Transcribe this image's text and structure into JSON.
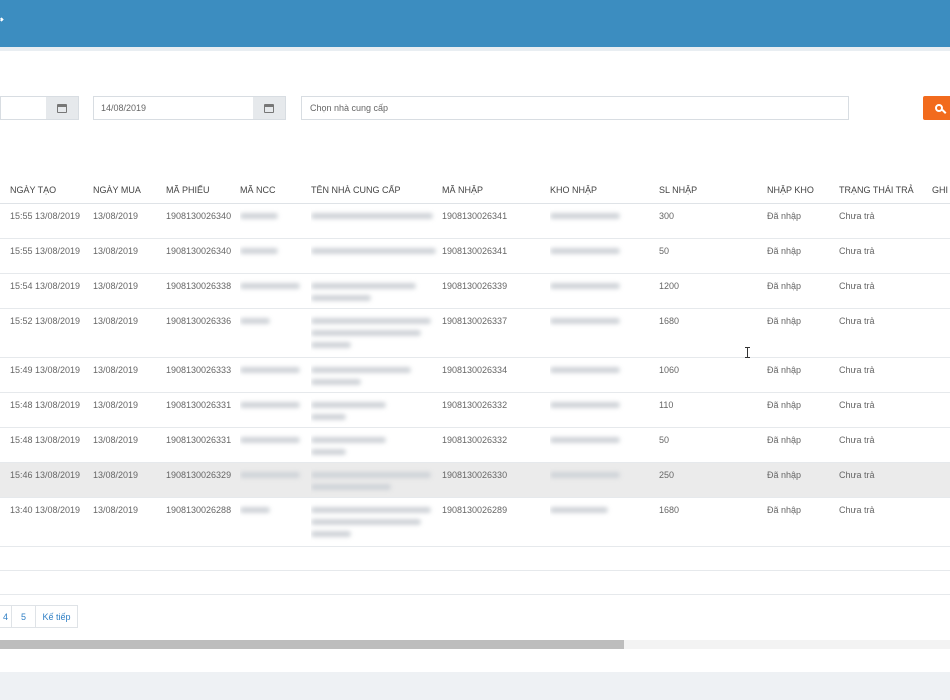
{
  "filters": {
    "date_from": "",
    "date_to": "14/08/2019",
    "supplier_placeholder": "Chọn nhà cung cấp"
  },
  "table": {
    "headers": {
      "created": "NGÀY TẠO",
      "buy_date": "NGÀY MUA",
      "slip": "MÃ PHIẾU",
      "supplier_code": "MÃ NCC",
      "supplier_name": "TÊN NHÀ CUNG CẤP",
      "import_code": "MÃ NHẬP",
      "warehouse": "KHO NHẬP",
      "qty": "SL NHẬP",
      "import_status": "NHẬP KHO",
      "pay_status": "TRẠNG THÁI TRẢ",
      "note": "GHI"
    },
    "rows": [
      {
        "created": "15:55 13/08/2019",
        "buy_date": "13/08/2019",
        "slip": "1908130026340",
        "import_code": "1908130026341",
        "qty": "300",
        "import_status": "Đã nhập",
        "pay_status": "Chưa trả"
      },
      {
        "created": "15:55 13/08/2019",
        "buy_date": "13/08/2019",
        "slip": "1908130026340",
        "import_code": "1908130026341",
        "qty": "50",
        "import_status": "Đã nhập",
        "pay_status": "Chưa trả"
      },
      {
        "created": "15:54 13/08/2019",
        "buy_date": "13/08/2019",
        "slip": "1908130026338",
        "import_code": "1908130026339",
        "qty": "1200",
        "import_status": "Đã nhập",
        "pay_status": "Chưa trả"
      },
      {
        "created": "15:52 13/08/2019",
        "buy_date": "13/08/2019",
        "slip": "1908130026336",
        "import_code": "1908130026337",
        "qty": "1680",
        "import_status": "Đã nhập",
        "pay_status": "Chưa trả"
      },
      {
        "created": "15:49 13/08/2019",
        "buy_date": "13/08/2019",
        "slip": "1908130026333",
        "import_code": "1908130026334",
        "qty": "1060",
        "import_status": "Đã nhập",
        "pay_status": "Chưa trả"
      },
      {
        "created": "15:48 13/08/2019",
        "buy_date": "13/08/2019",
        "slip": "1908130026331",
        "import_code": "1908130026332",
        "qty": "110",
        "import_status": "Đã nhập",
        "pay_status": "Chưa trả"
      },
      {
        "created": "15:48 13/08/2019",
        "buy_date": "13/08/2019",
        "slip": "1908130026331",
        "import_code": "1908130026332",
        "qty": "50",
        "import_status": "Đã nhập",
        "pay_status": "Chưa trả"
      },
      {
        "created": "15:46 13/08/2019",
        "buy_date": "13/08/2019",
        "slip": "1908130026329",
        "import_code": "1908130026330",
        "qty": "250",
        "import_status": "Đã nhập",
        "pay_status": "Chưa trả"
      },
      {
        "created": "13:40 13/08/2019",
        "buy_date": "13/08/2019",
        "slip": "1908130026288",
        "import_code": "1908130026289",
        "qty": "1680",
        "import_status": "Đã nhập",
        "pay_status": "Chưa trả"
      }
    ]
  },
  "pager": {
    "p4": "4",
    "p5": "5",
    "next": "Kế tiếp"
  }
}
